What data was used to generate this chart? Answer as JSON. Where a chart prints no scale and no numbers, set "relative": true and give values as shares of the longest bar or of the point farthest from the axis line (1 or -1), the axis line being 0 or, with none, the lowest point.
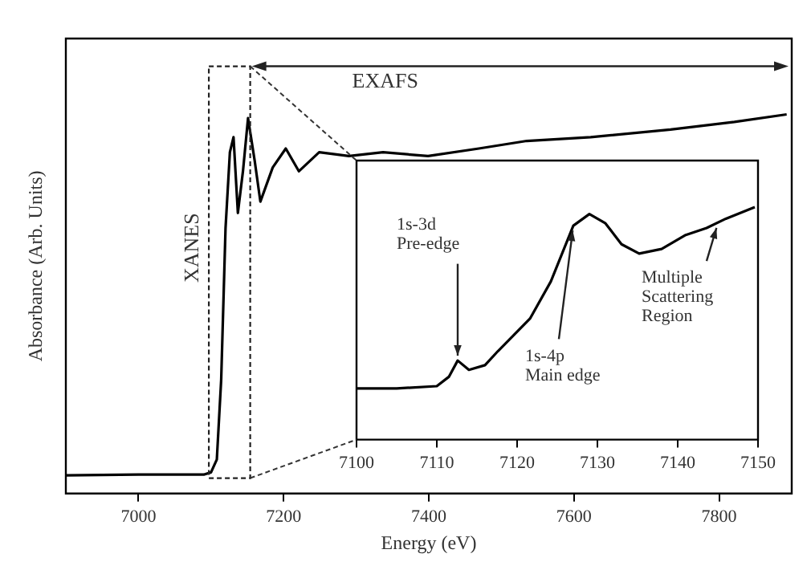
{
  "chart_data": [
    {
      "type": "line",
      "xlabel": "Energy (eV)",
      "ylabel": "Absorbance (Arb. Units)",
      "relative": true,
      "color": "#000000",
      "tick_labels": "x",
      "x": [
        6900,
        7000,
        7090,
        7100,
        7108,
        7114,
        7120,
        7126,
        7131,
        7137,
        7144,
        7151,
        7160,
        7168,
        7185,
        7203,
        7221,
        7249,
        7290,
        7337,
        7399,
        7469,
        7535,
        7623,
        7733,
        7821,
        7893
      ],
      "values": [
        0.048,
        0.05,
        0.05,
        0.056,
        0.09,
        0.3,
        0.7,
        0.9,
        0.94,
        0.74,
        0.85,
        0.99,
        0.88,
        0.77,
        0.86,
        0.91,
        0.85,
        0.9,
        0.89,
        0.9,
        0.89,
        0.91,
        0.93,
        0.94,
        0.96,
        0.98,
        1.0
      ],
      "xlim": [
        6900,
        7900
      ],
      "xticks": [
        7000,
        7200,
        7400,
        7600,
        7800
      ],
      "annotations": [
        "XANES",
        "EXAFS"
      ]
    },
    {
      "type": "line",
      "relative": true,
      "color": "#000000",
      "tick_labels": "x",
      "x": [
        7100,
        7105,
        7110,
        7111.5,
        7112.6,
        7114,
        7116,
        7117.6,
        7121.6,
        7124.2,
        7125.6,
        7127,
        7129,
        7131,
        7133,
        7135.2,
        7138,
        7141,
        7143.6,
        7146,
        7149.6
      ],
      "values": [
        0.22,
        0.22,
        0.23,
        0.27,
        0.34,
        0.3,
        0.32,
        0.38,
        0.52,
        0.68,
        0.8,
        0.92,
        0.97,
        0.93,
        0.84,
        0.8,
        0.82,
        0.88,
        0.91,
        0.95,
        1.0
      ],
      "xlim": [
        7100,
        7150
      ],
      "xticks": [
        7100,
        7110,
        7120,
        7130,
        7140,
        7150
      ],
      "annotations": [
        {
          "text": "1s-3d Pre-edge",
          "x": 7112.6,
          "y": 0.34
        },
        {
          "text": "1s-4p Main edge",
          "x": 7127,
          "y": 0.92
        },
        {
          "text": "Multiple Scattering Region",
          "x": 7145,
          "y": 0.93
        }
      ]
    }
  ]
}
